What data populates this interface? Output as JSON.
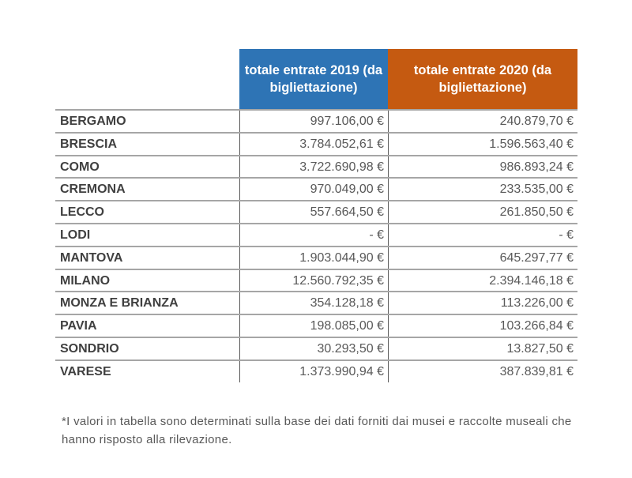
{
  "headers": {
    "col2019": "totale entrate 2019 (da bigliettazione)",
    "col2020": "totale entrate 2020 (da bigliettazione)"
  },
  "colors": {
    "col2019": "#2e74b5",
    "col2020": "#c55a11"
  },
  "rows": [
    {
      "name": "BERGAMO",
      "v2019": "997.106,00 €",
      "v2020": "240.879,70 €"
    },
    {
      "name": "BRESCIA",
      "v2019": "3.784.052,61 €",
      "v2020": "1.596.563,40 €"
    },
    {
      "name": "COMO",
      "v2019": "3.722.690,98 €",
      "v2020": "986.893,24 €"
    },
    {
      "name": "CREMONA",
      "v2019": "970.049,00 €",
      "v2020": "233.535,00 €"
    },
    {
      "name": "LECCO",
      "v2019": "557.664,50 €",
      "v2020": "261.850,50 €"
    },
    {
      "name": "LODI",
      "v2019": "-   €",
      "v2020": "-   €"
    },
    {
      "name": "MANTOVA",
      "v2019": "1.903.044,90 €",
      "v2020": "645.297,77 €"
    },
    {
      "name": "MILANO",
      "v2019": "12.560.792,35 €",
      "v2020": "2.394.146,18 €"
    },
    {
      "name": "MONZA E BRIANZA",
      "v2019": "354.128,18 €",
      "v2020": "113.226,00 €"
    },
    {
      "name": "PAVIA",
      "v2019": "198.085,00 €",
      "v2020": "103.266,84 €"
    },
    {
      "name": "SONDRIO",
      "v2019": "30.293,50 €",
      "v2020": "13.827,50 €"
    },
    {
      "name": "VARESE",
      "v2019": "1.373.990,94 €",
      "v2020": "387.839,81 €"
    }
  ],
  "footnote": "*I valori in tabella sono determinati sulla base dei dati forniti dai musei e raccolte museali che hanno risposto alla rilevazione."
}
